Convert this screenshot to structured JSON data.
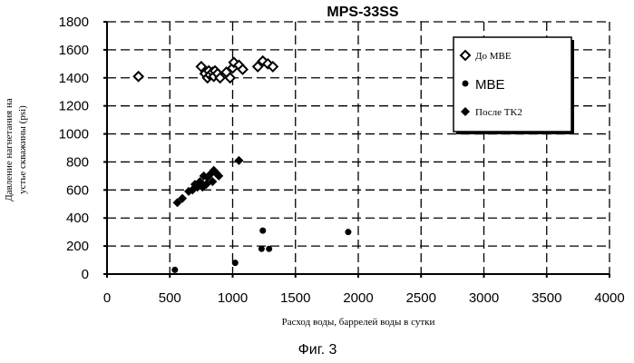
{
  "chart_data": {
    "type": "scatter",
    "title": "MPS-33SS",
    "xlabel": "Расход воды, баррелей воды в сутки",
    "ylabel_lines": [
      "Давление нагнетания на",
      "устье скважины (psi)"
    ],
    "xlim": [
      0,
      4000
    ],
    "ylim": [
      0,
      1800
    ],
    "x_ticks": [
      0,
      500,
      1000,
      1500,
      2000,
      2500,
      3000,
      3500,
      4000
    ],
    "y_ticks": [
      0,
      200,
      400,
      600,
      800,
      1000,
      1200,
      1400,
      1600,
      1800
    ],
    "grid": true,
    "legend_position": "top-right",
    "series": [
      {
        "name": "До MBE",
        "marker": "open-diamond",
        "points": [
          [
            250,
            1410
          ],
          [
            750,
            1480
          ],
          [
            780,
            1430
          ],
          [
            800,
            1400
          ],
          [
            810,
            1450
          ],
          [
            820,
            1420
          ],
          [
            840,
            1440
          ],
          [
            850,
            1410
          ],
          [
            860,
            1450
          ],
          [
            880,
            1430
          ],
          [
            900,
            1400
          ],
          [
            950,
            1440
          ],
          [
            980,
            1400
          ],
          [
            1000,
            1470
          ],
          [
            1010,
            1510
          ],
          [
            1050,
            1490
          ],
          [
            1080,
            1460
          ],
          [
            1200,
            1480
          ],
          [
            1240,
            1520
          ],
          [
            1280,
            1500
          ],
          [
            1320,
            1480
          ]
        ]
      },
      {
        "name": "MBE",
        "marker": "filled-circle",
        "points": [
          [
            540,
            30
          ],
          [
            1020,
            80
          ],
          [
            1230,
            180
          ],
          [
            1240,
            310
          ],
          [
            1290,
            180
          ],
          [
            1920,
            300
          ]
        ]
      },
      {
        "name": "После TK2",
        "marker": "filled-diamond",
        "points": [
          [
            560,
            510
          ],
          [
            600,
            540
          ],
          [
            650,
            590
          ],
          [
            680,
            600
          ],
          [
            700,
            640
          ],
          [
            720,
            620
          ],
          [
            740,
            660
          ],
          [
            760,
            620
          ],
          [
            770,
            700
          ],
          [
            790,
            640
          ],
          [
            800,
            690
          ],
          [
            820,
            710
          ],
          [
            840,
            660
          ],
          [
            850,
            740
          ],
          [
            870,
            720
          ],
          [
            890,
            700
          ],
          [
            1050,
            810
          ]
        ]
      }
    ]
  },
  "caption": "Фиг. 3"
}
